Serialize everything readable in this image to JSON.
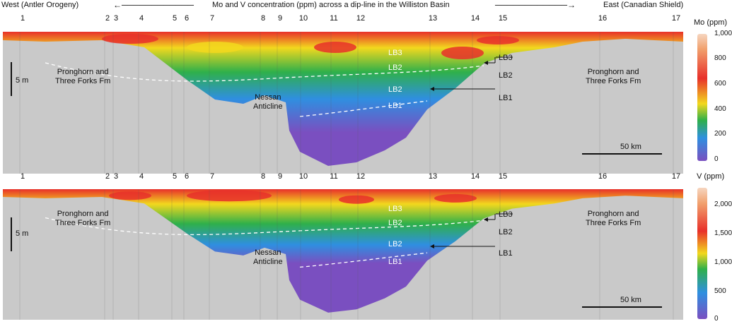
{
  "header": {
    "west": "West (Antler Orogeny)",
    "title": "Mo and V concentration (ppm) across a dip-line in the Williston Basin",
    "east": "East (Canadian Shield)"
  },
  "wells": [
    "1",
    "2",
    "3",
    "4",
    "5",
    "6",
    "7",
    "8",
    "9",
    "10",
    "11",
    "12",
    "13",
    "14",
    "15",
    "16",
    "17"
  ],
  "panels": [
    {
      "id": "mo",
      "unit": "Mo (ppm)",
      "colorbar_ticks": [
        "1,000",
        "800",
        "600",
        "400",
        "200",
        "0"
      ],
      "colorbar_range": [
        0,
        1000
      ],
      "formation_left": [
        "Pronghorn and",
        "Three Forks Fm"
      ],
      "formation_right": [
        "Pronghorn and",
        "Three Forks Fm"
      ],
      "anticline": [
        "Nessan",
        "Anticline"
      ],
      "vertical_scale": "5 m",
      "horizontal_scale": "50 km",
      "units_in_section": [
        "LB3",
        "LB2",
        "LB2",
        "LB1"
      ],
      "arrow_labels": [
        "LB3",
        "LB2",
        "LB1"
      ]
    },
    {
      "id": "v",
      "unit": "V (ppm)",
      "colorbar_ticks": [
        "2,000",
        "1,500",
        "1,000",
        "500",
        "0"
      ],
      "colorbar_range": [
        0,
        2250
      ],
      "formation_left": [
        "Pronghorn and",
        "Three Forks Fm"
      ],
      "formation_right": [
        "Pronghorn and",
        "Three Forks Fm"
      ],
      "anticline": [
        "Nessan",
        "Anticline"
      ],
      "vertical_scale": "5 m",
      "horizontal_scale": "50 km",
      "units_in_section": [
        "LB3",
        "LB2",
        "LB2",
        "LB1"
      ],
      "arrow_labels": [
        "LB3",
        "LB2",
        "LB1"
      ]
    }
  ],
  "colors": {
    "background_rock": "#c9c9c9",
    "low": "#7a4fc0",
    "mid_low": "#2f8fe0",
    "mid": "#2fb04a",
    "mid_high": "#f2d81e",
    "high": "#e8302a",
    "top": "#f6d6c0"
  }
}
